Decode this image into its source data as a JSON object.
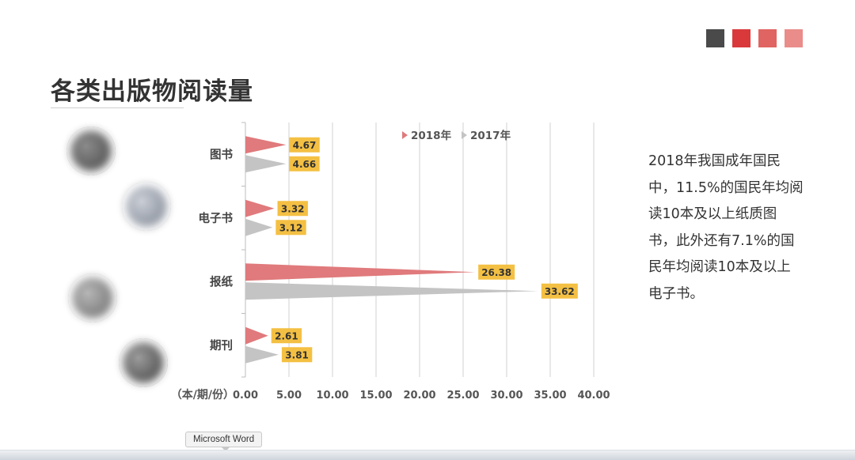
{
  "slide": {
    "title": "各类出版物阅读量",
    "accent_squares": [
      "#4a4a4a",
      "#d9393b",
      "#e06461",
      "#ea8d8a"
    ],
    "description_lines": [
      "2018年我国成年国民",
      "中，11.5%的国民年均阅",
      "读10本及以上纸质图",
      "书，此外还有7.1%的国",
      "民年均阅读10本及以上",
      "电子书。"
    ]
  },
  "thumbnails": [
    {
      "name": "book-photo",
      "colors": [
        "#3a3a3a",
        "#8a8a8a"
      ]
    },
    {
      "name": "ebook-photo",
      "colors": [
        "#6b7280",
        "#c9ced6"
      ]
    },
    {
      "name": "newspaper-photo",
      "colors": [
        "#5c5c5c",
        "#b5b5b5"
      ]
    },
    {
      "name": "magazine-photo",
      "colors": [
        "#2d2d2d",
        "#9a9a9a"
      ]
    }
  ],
  "tooltip": {
    "text": "Microsoft Word"
  },
  "chart_data": {
    "type": "bar",
    "orientation": "horizontal",
    "categories": [
      "图书",
      "电子书",
      "报纸",
      "期刊"
    ],
    "series": [
      {
        "name": "2018年",
        "color": "#e07a7c",
        "values": [
          4.67,
          3.32,
          26.38,
          2.61
        ]
      },
      {
        "name": "2017年",
        "color": "#c4c4c4",
        "values": [
          4.66,
          3.12,
          33.62,
          3.81
        ]
      }
    ],
    "xlabel": "（本/期/份）",
    "xlim": [
      0,
      40
    ],
    "xticks": [
      0,
      5,
      10,
      15,
      20,
      25,
      30,
      35,
      40
    ],
    "tick_format_decimals": 2,
    "legend_position": "top-center",
    "data_label_color": "#f4c043",
    "grid": true
  }
}
